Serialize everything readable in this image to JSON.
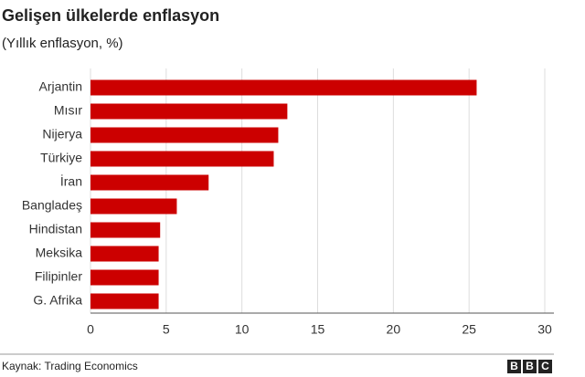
{
  "chart_data": {
    "type": "barh",
    "title": "Gelişen ülkelerde enflasyon",
    "subtitle": "(Yıllık enflasyon, %)",
    "categories": [
      "Arjantin",
      "Mısır",
      "Nijerya",
      "Türkiye",
      "İran",
      "Bangladeş",
      "Hindistan",
      "Meksika",
      "Filipinler",
      "G. Afrika"
    ],
    "values": [
      25.5,
      13.0,
      12.4,
      12.1,
      7.8,
      5.7,
      4.6,
      4.5,
      4.5,
      4.5
    ],
    "color": "#cc0000",
    "xlim": [
      0,
      30
    ],
    "xticks": [
      0,
      5,
      10,
      15,
      20,
      25,
      30
    ],
    "grid": true,
    "source": "Kaynak: Trading Economics",
    "logo": [
      "B",
      "B",
      "C"
    ]
  }
}
